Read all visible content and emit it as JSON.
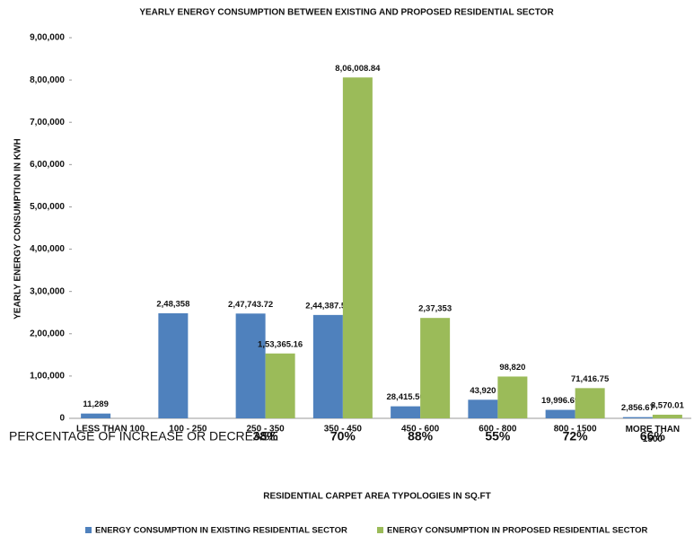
{
  "chart_data": {
    "type": "bar",
    "title": "YEARLY ENERGY CONSUMPTION BETWEEN EXISTING AND PROPOSED RESIDENTIAL SECTOR",
    "y_label": "YEARLY ENERGY CONSUMPTION IN KWH",
    "x_label": "RESIDENTIAL CARPET AREA TYPOLOGIES IN SQ.FT",
    "categories": [
      "LESS THAN 100",
      "100 - 250",
      "250 - 350",
      "350 - 450",
      "450 - 600",
      "600 - 800",
      "800 - 1500",
      "MORE THAN 1500"
    ],
    "series": [
      {
        "name": "ENERGY CONSUMPTION IN EXISTING RESIDENTIAL SECTOR",
        "color": "#4f81bd",
        "values": [
          11289,
          248358,
          247743.72,
          244387.52,
          28415.5,
          43920,
          19996.69,
          2856.67
        ],
        "value_labels": [
          "11,289",
          "2,48,358",
          "2,47,743.72",
          "2,44,387.52",
          "28,415.50",
          "43,920",
          "19,996.69",
          "2,856.67"
        ]
      },
      {
        "name": "ENERGY CONSUMPTION IN PROPOSED RESIDENTIAL SECTOR",
        "color": "#9bbb59",
        "values": [
          null,
          null,
          153365.16,
          806008.84,
          237353,
          98820,
          71416.75,
          8570.01
        ],
        "value_labels": [
          null,
          null,
          "1,53,365.16",
          "8,06,008.84",
          "2,37,353",
          "98,820",
          "71,416.75",
          "8,570.01"
        ]
      }
    ],
    "percentage_title": "PERCENTAGE OF INCREASE OR DECREASE",
    "percentage_labels": [
      null,
      null,
      "38%",
      "70%",
      "88%",
      "55%",
      "72%",
      "66%"
    ],
    "ylim": [
      0,
      900000
    ],
    "yticks": [
      0,
      {
        "value": 100000,
        "label": "1,00,000"
      },
      {
        "value": 200000,
        "label": "2,00,000"
      },
      {
        "value": 300000,
        "label": "3,00,000"
      },
      {
        "value": 400000,
        "label": "4,00,000"
      },
      {
        "value": 500000,
        "label": "5,00,000"
      },
      {
        "value": 600000,
        "label": "6,00,000"
      },
      {
        "value": 700000,
        "label": "7,00,000"
      },
      {
        "value": 800000,
        "label": "8,00,000"
      },
      {
        "value": 900000,
        "label": "9,00,000"
      }
    ],
    "grid": false,
    "legend": "bottom"
  }
}
